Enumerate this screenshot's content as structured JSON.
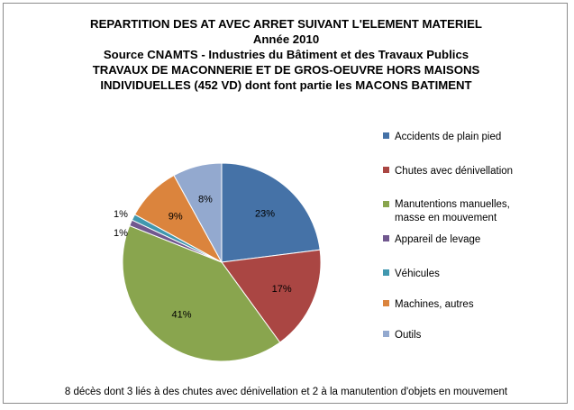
{
  "chart_data": {
    "type": "pie",
    "title_lines": [
      "REPARTITION DES AT AVEC ARRET SUIVANT L'ELEMENT MATERIEL",
      "Année 2010",
      "Source CNAMTS - Industries du Bâtiment et des Travaux Publics",
      "TRAVAUX DE MACONNERIE ET DE GROS-OEUVRE HORS MAISONS",
      "INDIVIDUELLES (452 VD) dont font partie les MACONS BATIMENT"
    ],
    "slices": [
      {
        "label": "Accidents de plain pied",
        "value": 23,
        "display": "23%",
        "color": "#4572a7"
      },
      {
        "label": "Chutes avec dénivellation",
        "value": 17,
        "display": "17%",
        "color": "#aa4643"
      },
      {
        "label": "Manutentions manuelles, masse en mouvement",
        "value": 41,
        "display": "41%",
        "color": "#89a54e"
      },
      {
        "label": "Appareil de levage",
        "value": 1,
        "display": "1%",
        "color": "#71588f"
      },
      {
        "label": "Véhicules",
        "value": 1,
        "display": "1%",
        "color": "#4198af"
      },
      {
        "label": "Machines, autres",
        "value": 9,
        "display": "9%",
        "color": "#db843d"
      },
      {
        "label": "Outils",
        "value": 8,
        "display": "8%",
        "color": "#93a9cf"
      }
    ],
    "legend_position": "right",
    "footnote": "8 décès dont 3 liés à des chutes avec dénivellation et 2 à la manutention d'objets en mouvement"
  }
}
